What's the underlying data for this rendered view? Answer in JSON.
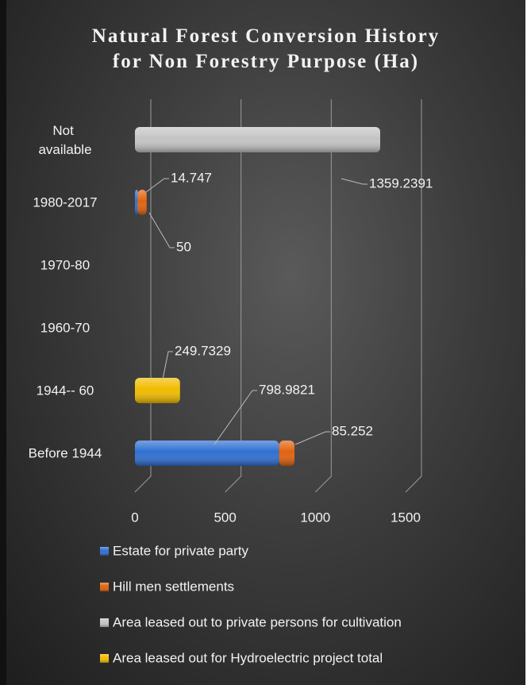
{
  "chart_data": {
    "type": "bar",
    "stacked": true,
    "orientation": "horizontal",
    "title": "Natural Forest Conversion History for Non Forestry Purpose (Ha)",
    "categories": [
      "Not available",
      "1980-2017",
      "1970-80",
      "1960-70",
      "1944-- 60",
      "Before 1944"
    ],
    "series": [
      {
        "name": "Estate for private party",
        "color": "#2f6fd3",
        "values": [
          null,
          14.747,
          null,
          null,
          null,
          798.9821
        ]
      },
      {
        "name": "Hill men settlements",
        "color": "#e2620e",
        "values": [
          null,
          50,
          null,
          null,
          null,
          85.252
        ]
      },
      {
        "name": "Area leased out to private persons for cultivation",
        "color": "#c4c4c4",
        "values": [
          1359.2391,
          null,
          null,
          null,
          null,
          null
        ]
      },
      {
        "name": "Area leased out for Hydroelectric project total",
        "color": "#f0bc00",
        "values": [
          null,
          null,
          null,
          null,
          249.7329,
          null
        ]
      }
    ],
    "xlim": [
      0,
      1500
    ],
    "xticks": [
      0,
      500,
      1000,
      1500
    ],
    "grid": true,
    "legend": "bottom"
  }
}
